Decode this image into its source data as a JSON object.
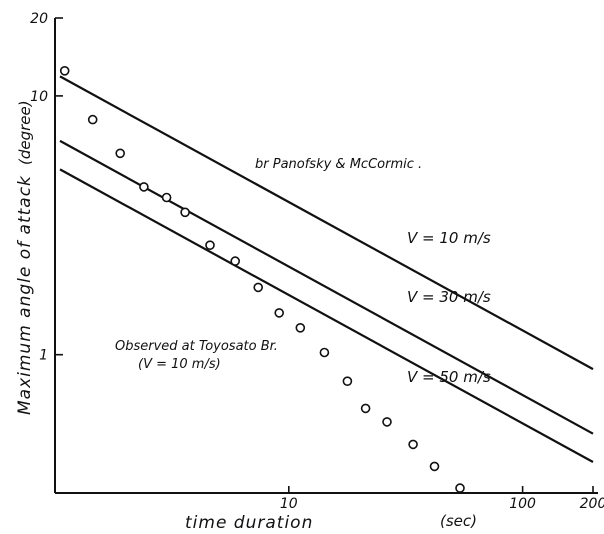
{
  "chart_data": {
    "type": "line",
    "xscale": "log",
    "yscale": "log",
    "xlim": [
      1,
      200
    ],
    "ylim": [
      0.3,
      20
    ],
    "xlabel": "time duration",
    "xunit": "(sec)",
    "ylabel": "Maximum angle of attack",
    "yunit": "(degree)",
    "x_ticks": [
      {
        "value": 10,
        "label": "10"
      },
      {
        "value": 100,
        "label": "100"
      },
      {
        "value": 200,
        "label": "200"
      }
    ],
    "y_ticks": [
      {
        "value": 1,
        "label": "1"
      },
      {
        "value": 10,
        "label": "10"
      },
      {
        "value": 20,
        "label": "20"
      }
    ],
    "annotations": {
      "source": "br Panofsky & McCormic .",
      "observed_title": "Observed at Toyosato Br.",
      "observed_sub": "(V = 10 m/s)"
    },
    "series": [
      {
        "name": "V = 10 m/s",
        "kind": "theory",
        "x": [
          1.05,
          200
        ],
        "y": [
          11.9,
          0.88
        ]
      },
      {
        "name": "V = 30 m/s",
        "kind": "theory",
        "x": [
          1.05,
          200
        ],
        "y": [
          6.7,
          0.495
        ]
      },
      {
        "name": "V = 50 m/s",
        "kind": "theory",
        "x": [
          1.05,
          200
        ],
        "y": [
          5.2,
          0.385
        ]
      },
      {
        "name": "Observed at Toyosato Br. (V = 10 m/s)",
        "kind": "observed",
        "x": [
          1.1,
          1.45,
          1.9,
          2.4,
          3.0,
          3.6,
          4.6,
          5.9,
          7.4,
          9.1,
          11.2,
          14.2,
          17.8,
          21.3,
          26.3,
          34,
          42,
          54
        ],
        "y": [
          12.5,
          8.1,
          6.0,
          4.45,
          4.05,
          3.55,
          2.65,
          2.3,
          1.82,
          1.45,
          1.27,
          1.02,
          0.79,
          0.62,
          0.55,
          0.45,
          0.37,
          0.305
        ]
      }
    ]
  }
}
